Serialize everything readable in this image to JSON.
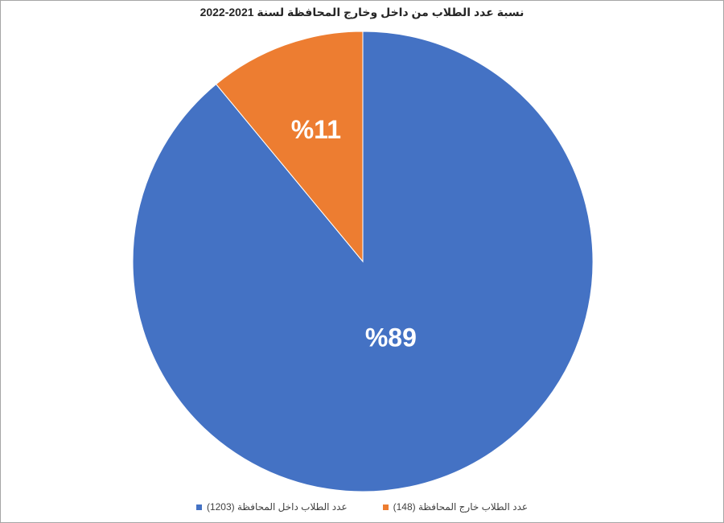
{
  "chart_data": {
    "type": "pie",
    "title": "نسبة عدد الطلاب من داخل وخارج المحافظة لسنة 2021-2022",
    "categories": [
      "عدد الطلاب داخل المحافظة (1203)",
      "عدد الطلاب  خارج المحافظة (148)"
    ],
    "values": [
      89,
      11
    ],
    "value_labels": [
      "%89",
      "%11"
    ],
    "colors": [
      "#4472c4",
      "#ed7d31"
    ]
  }
}
